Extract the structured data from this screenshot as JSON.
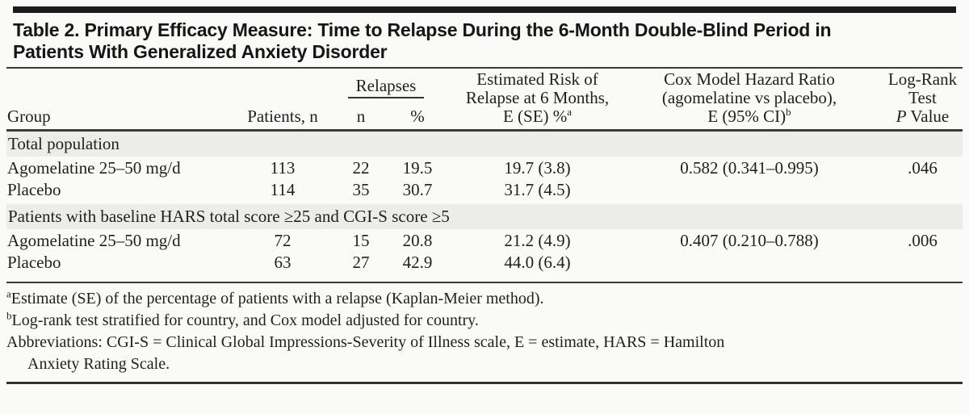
{
  "table": {
    "title_line1": "Table 2. Primary Efficacy Measure: Time to Relapse During the 6-Month Double-Blind Period in",
    "title_line2": "Patients With Generalized Anxiety Disorder",
    "columns": {
      "group": "Group",
      "patients": "Patients, n",
      "relapses": "Relapses",
      "relapses_n": "n",
      "relapses_pct": "%",
      "risk_line1": "Estimated Risk of",
      "risk_line2": "Relapse at 6 Months,",
      "risk_line3": "E (SE) %",
      "risk_footnote_marker": "a",
      "cox_line1": "Cox Model Hazard Ratio",
      "cox_line2": "(agomelatine vs placebo),",
      "cox_line3": "E (95% CI)",
      "cox_footnote_marker": "b",
      "logrank_line1": "Log-Rank",
      "logrank_line2": "Test",
      "logrank_p": "P",
      "logrank_value": " Value"
    },
    "sections": [
      {
        "label": "Total population",
        "rows": [
          {
            "group": "Agomelatine 25–50 mg/d",
            "patients": "113",
            "relapses_n": "22",
            "relapses_pct": "19.5",
            "risk": "19.7 (3.8)",
            "hazard_ratio": "0.582 (0.341–0.995)",
            "p_value": ".046"
          },
          {
            "group": "Placebo",
            "patients": "114",
            "relapses_n": "35",
            "relapses_pct": "30.7",
            "risk": "31.7 (4.5)",
            "hazard_ratio": "",
            "p_value": ""
          }
        ]
      },
      {
        "label": "Patients with baseline HARS total score ≥25 and CGI-S score ≥5",
        "rows": [
          {
            "group": "Agomelatine 25–50 mg/d",
            "patients": "72",
            "relapses_n": "15",
            "relapses_pct": "20.8",
            "risk": "21.2 (4.9)",
            "hazard_ratio": "0.407 (0.210–0.788)",
            "p_value": ".006"
          },
          {
            "group": "Placebo",
            "patients": "63",
            "relapses_n": "27",
            "relapses_pct": "42.9",
            "risk": "44.0 (6.4)",
            "hazard_ratio": "",
            "p_value": ""
          }
        ]
      }
    ],
    "footnotes": {
      "a_marker": "a",
      "a_text": "Estimate (SE) of the percentage of patients with a relapse (Kaplan-Meier method).",
      "b_marker": "b",
      "b_text": "Log-rank test stratified for country, and Cox model adjusted for country.",
      "abbreviations_line1": "Abbreviations: CGI-S = Clinical Global Impressions-Severity of Illness scale, E = estimate, HARS = Hamilton",
      "abbreviations_line2": "Anxiety Rating Scale."
    },
    "colors": {
      "section_band": "#ECECE9",
      "rule": "#3A3A3A",
      "top_bar": "#1C1C1C",
      "background": "#FAFAF8",
      "text": "#1F1F1F"
    }
  }
}
